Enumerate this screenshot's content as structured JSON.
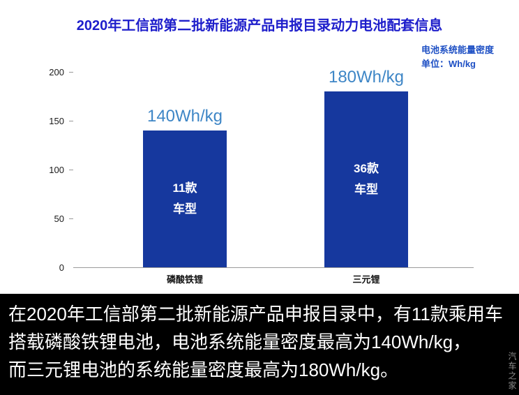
{
  "header": {
    "title": "2020年工信部第二批新能源产品申报目录动力电池配套信息",
    "note_line1": "电池系统能量密度",
    "note_line2": "单位：Wh/kg"
  },
  "chart_data": {
    "type": "bar",
    "categories": [
      "磷酸铁锂",
      "三元锂"
    ],
    "values": [
      140,
      180
    ],
    "value_labels": [
      "140Wh/kg",
      "180Wh/kg"
    ],
    "bar_inner_labels": [
      [
        "11款",
        "车型"
      ],
      [
        "36款",
        "车型"
      ]
    ],
    "title": "2020年工信部第二批新能源产品申报目录动力电池配套信息",
    "xlabel": "",
    "ylabel": "",
    "ylim": [
      0,
      200
    ],
    "yticks": [
      0,
      50,
      100,
      150,
      200
    ],
    "grid": false,
    "legend": "none",
    "bar_color": "#16389e",
    "value_label_color": "#3e86c6",
    "title_color": "#1e1ecb"
  },
  "caption": {
    "line1": "在2020年工信部第二批新能源产品申报目录中，有11款乘用车",
    "line2": "搭载磷酸铁锂电池，电池系统能量密度最高为140Wh/kg，",
    "line3": "而三元锂电池的系统能量密度最高为180Wh/kg。"
  },
  "watermark": "汽车之家"
}
